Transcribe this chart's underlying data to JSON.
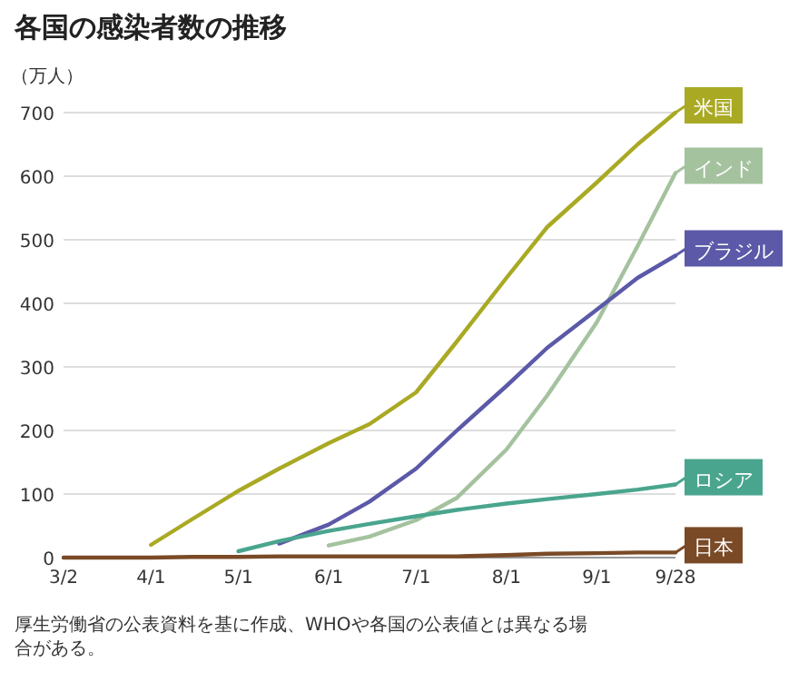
{
  "chart_data": {
    "type": "line",
    "title": "各国の感染者数の推移",
    "ylabel": "（万人）",
    "annotations": [
      "厚生労働省の公表資料を基に作成、WHOや各国の公表値とは異なる場合がある。"
    ],
    "xlim": [
      "--03-02",
      "--09-28"
    ],
    "xticks": [
      {
        "value": "--03-02",
        "label": "3/2"
      },
      {
        "value": "--04-01",
        "label": "4/1"
      },
      {
        "value": "--05-01",
        "label": "5/1"
      },
      {
        "value": "--06-01",
        "label": "6/1"
      },
      {
        "value": "--07-01",
        "label": "7/1"
      },
      {
        "value": "--08-01",
        "label": "8/1"
      },
      {
        "value": "--09-01",
        "label": "9/1"
      },
      {
        "value": "--09-28",
        "label": "9/28"
      }
    ],
    "ylim": [
      0,
      700
    ],
    "yticks": [
      0,
      100,
      200,
      300,
      400,
      500,
      600,
      700
    ],
    "grid": "y",
    "legend": "right",
    "marker": "none",
    "x": [
      "--03-02",
      "--03-15",
      "--03-22",
      "--04-01",
      "--04-15",
      "--05-01",
      "--05-15",
      "--06-01",
      "--06-15",
      "--07-01",
      "--07-15",
      "--08-01",
      "--08-15",
      "--09-01",
      "--09-15",
      "--09-28"
    ],
    "series": [
      {
        "name": "米国",
        "color": "#a9a924",
        "values": [
          null,
          null,
          null,
          20,
          60,
          105,
          140,
          180,
          210,
          260,
          340,
          440,
          520,
          590,
          650,
          700
        ]
      },
      {
        "name": "インド",
        "color": "#a4c29e",
        "values": [
          null,
          null,
          null,
          null,
          null,
          null,
          null,
          19,
          33,
          59,
          94,
          170,
          255,
          370,
          490,
          605
        ]
      },
      {
        "name": "ブラジル",
        "color": "#5b59a8",
        "values": [
          null,
          null,
          null,
          null,
          null,
          null,
          22,
          52,
          88,
          140,
          200,
          270,
          330,
          390,
          440,
          475
        ]
      },
      {
        "name": "ロシア",
        "color": "#4aa58e",
        "values": [
          null,
          null,
          null,
          null,
          null,
          10,
          26,
          42,
          53,
          65,
          75,
          85,
          92,
          100,
          107,
          115
        ]
      },
      {
        "name": "日本",
        "color": "#7a4a26",
        "values": [
          0,
          0,
          0,
          0,
          1,
          1,
          2,
          2,
          2,
          2,
          2,
          4,
          6,
          7,
          8,
          8
        ]
      }
    ]
  }
}
